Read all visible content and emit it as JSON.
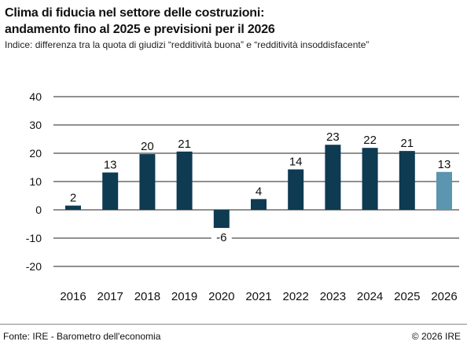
{
  "header": {
    "title_line1": "Clima di fiducia nel settore delle costruzioni:",
    "title_line2": "andamento fino al 2025 e previsioni per il 2026",
    "subtitle": "Indice: differenza tra la quota di giudizi “redditività buona” e “redditività insoddisfacente”"
  },
  "footer": {
    "source": "Fonte: IRE - Barometro dell'economia",
    "copyright": "© 2026 IRE"
  },
  "colors": {
    "actual": "#0e3a52",
    "forecast": "#5b95b0",
    "grid": "#222222"
  },
  "chart_data": {
    "type": "bar",
    "title": "Clima di fiducia nel settore delle costruzioni: andamento fino al 2025 e previsioni per il 2026",
    "subtitle": "Indice: differenza tra la quota di giudizi “redditività buona” e “redditività insoddisfacente”",
    "xlabel": "",
    "ylabel": "",
    "categories": [
      "2016",
      "2017",
      "2018",
      "2019",
      "2020",
      "2021",
      "2022",
      "2023",
      "2024",
      "2025",
      "2026"
    ],
    "values": [
      1.5,
      13.2,
      19.7,
      20.6,
      -6.4,
      3.8,
      14.3,
      23.0,
      21.9,
      20.8,
      13.4
    ],
    "value_labels": [
      "2",
      "13",
      "20",
      "21",
      "-6",
      "4",
      "14",
      "23",
      "22",
      "21",
      "13"
    ],
    "forecast_index": 10,
    "ylim": [
      -20,
      40
    ],
    "yticks": [
      40,
      30,
      20,
      10,
      0,
      -10,
      -20
    ],
    "grid": true,
    "legend": "none"
  }
}
